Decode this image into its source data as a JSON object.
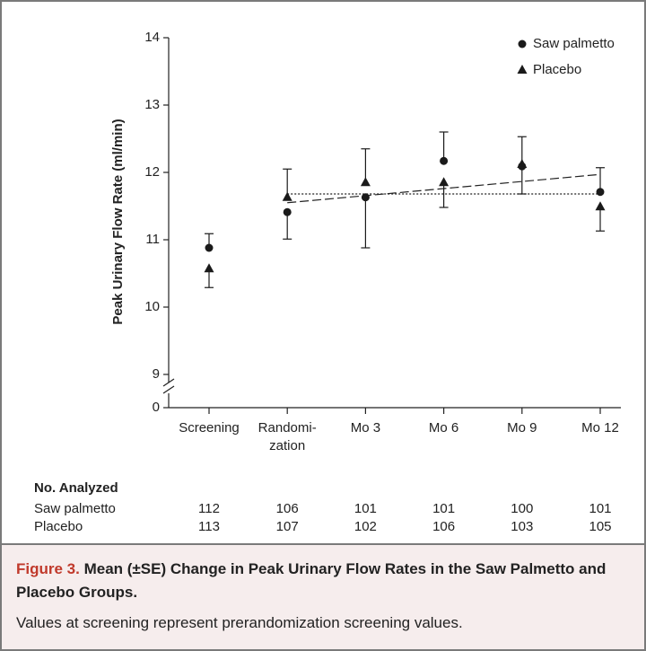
{
  "chart_data": {
    "type": "errorbar",
    "ylabel": "Peak Urinary Flow Rate (ml/min)",
    "categories": [
      "Screening",
      "Randomi-\nzation",
      "Mo 3",
      "Mo 6",
      "Mo 9",
      "Mo 12"
    ],
    "series": [
      {
        "name": "Saw palmetto",
        "marker": "circle",
        "color": "#1a1a1a",
        "values": [
          10.88,
          11.41,
          11.63,
          12.17,
          12.09,
          11.71
        ],
        "errors": [
          0.21,
          0.4,
          0.75,
          0.43,
          0.41,
          0.36
        ]
      },
      {
        "name": "Placebo",
        "marker": "triangle",
        "color": "#1a1a1a",
        "values": [
          10.57,
          11.63,
          11.85,
          11.85,
          12.12,
          11.49
        ],
        "errors": [
          0.28,
          0.42,
          0.5,
          0.37,
          0.41,
          0.36
        ]
      }
    ],
    "trend_lines": [
      {
        "dash": "dashed",
        "span": [
          1,
          5
        ],
        "values": [
          11.55,
          11.97
        ]
      },
      {
        "dash": "dotted",
        "span": [
          1,
          5
        ],
        "values": [
          11.68,
          11.68
        ]
      }
    ],
    "ylim": [
      0,
      14
    ],
    "axis_break": [
      0,
      9
    ],
    "yticks": [
      0,
      9,
      10,
      11,
      12,
      13,
      14
    ],
    "legend": "upper right",
    "analyzed": {
      "title": "No. Analyzed",
      "rows": [
        {
          "label": "Saw palmetto",
          "values": [
            112,
            106,
            101,
            101,
            100,
            101
          ]
        },
        {
          "label": "Placebo",
          "values": [
            113,
            107,
            102,
            106,
            103,
            105
          ]
        }
      ]
    }
  },
  "caption": {
    "label": "Figure 3.",
    "title": "Mean (±SE) Change in Peak Urinary Flow Rates in the Saw Palmetto and Placebo Groups.",
    "note": "Values at screening represent prerandomization screening values."
  }
}
